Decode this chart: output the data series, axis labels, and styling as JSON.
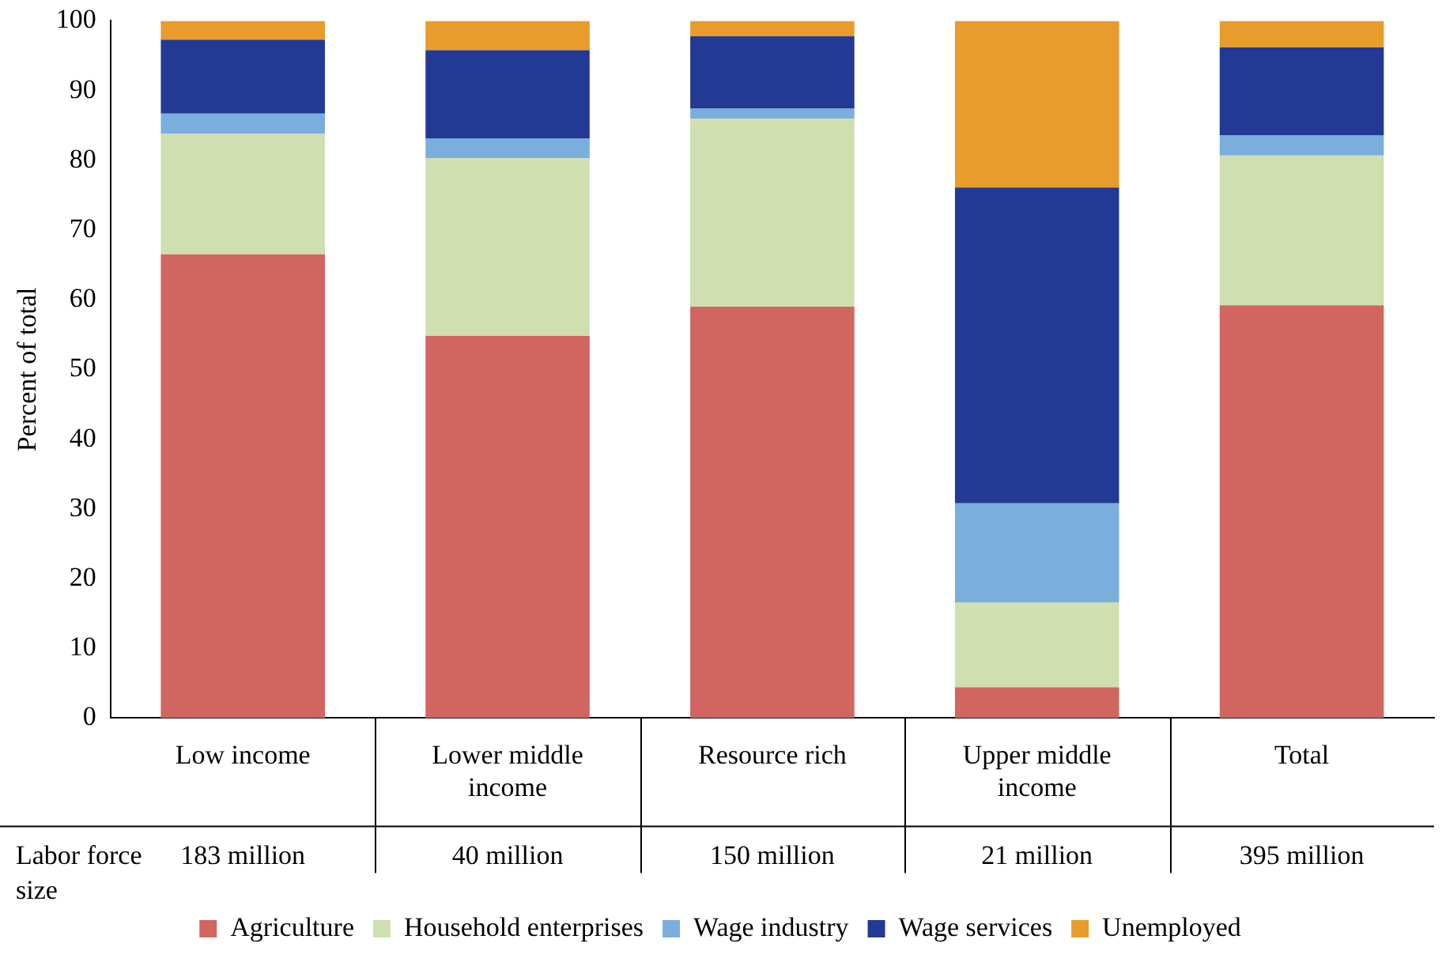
{
  "chart_data": {
    "type": "bar",
    "stacked": true,
    "ylabel": "Percent of total",
    "categories": [
      "Low income",
      "Lower middle income",
      "Resource rich",
      "Upper middle income",
      "Total"
    ],
    "series": [
      {
        "name": "Agriculture",
        "color": "#d0665f",
        "values": [
          66.5,
          54.8,
          59.0,
          4.4,
          59.2
        ]
      },
      {
        "name": "Household enterprises",
        "color": "#cfdfb0",
        "values": [
          17.3,
          25.5,
          27.0,
          12.2,
          21.5
        ]
      },
      {
        "name": "Wage industry",
        "color": "#7aaedd",
        "values": [
          2.9,
          2.8,
          1.4,
          14.2,
          2.9
        ]
      },
      {
        "name": "Wage services",
        "color": "#233a95",
        "values": [
          10.6,
          12.7,
          10.4,
          45.3,
          12.6
        ]
      },
      {
        "name": "Unemployed",
        "color": "#e89c2c",
        "values": [
          2.7,
          4.2,
          2.2,
          23.9,
          3.8
        ]
      }
    ],
    "ylim": [
      0,
      100
    ],
    "yticks": [
      0,
      10,
      20,
      30,
      40,
      50,
      60,
      70,
      80,
      90,
      100
    ],
    "grid": false,
    "legend": "bottom",
    "annotations": [
      "Labor force size",
      "183 million",
      "40 million",
      "150 million",
      "21 million",
      "395 million"
    ]
  }
}
